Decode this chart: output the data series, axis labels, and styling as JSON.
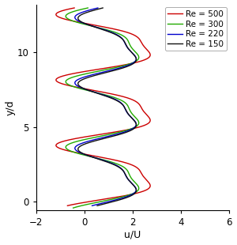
{
  "xlabel": "u/U",
  "ylabel": "y/d",
  "xlim": [
    -2,
    6
  ],
  "ylim": [
    -0.6,
    13.2
  ],
  "xticks": [
    -2,
    0,
    2,
    4,
    6
  ],
  "yticks": [
    0,
    5,
    10
  ],
  "legend": [
    "Re = 500",
    "Re = 300",
    "Re = 220",
    "Re = 150"
  ],
  "colors": [
    "#cc0000",
    "#22aa00",
    "#0000cc",
    "#111111"
  ],
  "linewidth": 1.0
}
